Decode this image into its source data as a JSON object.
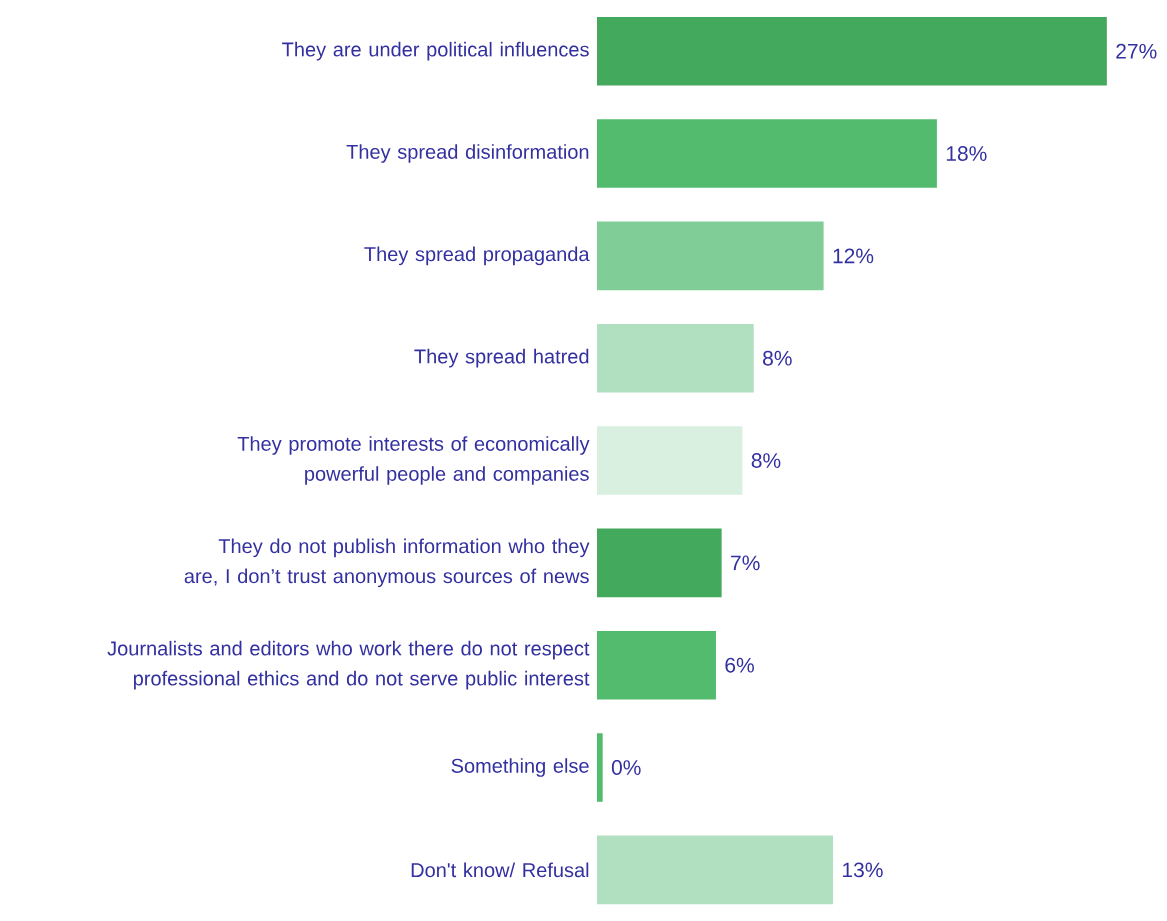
{
  "chart_data": {
    "type": "bar",
    "orientation": "horizontal",
    "categories": [
      "They are under political influences",
      "They spread disinformation",
      "They spread propaganda",
      "They spread hatred",
      "They promote interests of economically powerful people and companies",
      "They do not publish information who they are, I don’t trust anonymous sources of news",
      "Journalists and editors who work there do not respect professional ethics and do not serve public interest",
      "Something else",
      "Don't know/ Refusal"
    ],
    "values": [
      27,
      18,
      12,
      8.3,
      7.7,
      6.6,
      6.3,
      0.3,
      12.5
    ],
    "value_labels": [
      "27%",
      "18%",
      "12%",
      "8%",
      "8%",
      "7%",
      "6%",
      "0%",
      "13%"
    ],
    "colors": [
      "#43a95d",
      "#52bb6e",
      "#80cd97",
      "#b1e0c0",
      "#d9f0e0",
      "#43a95d",
      "#52bb6e",
      "#52bb6e",
      "#b1e0c0"
    ]
  }
}
